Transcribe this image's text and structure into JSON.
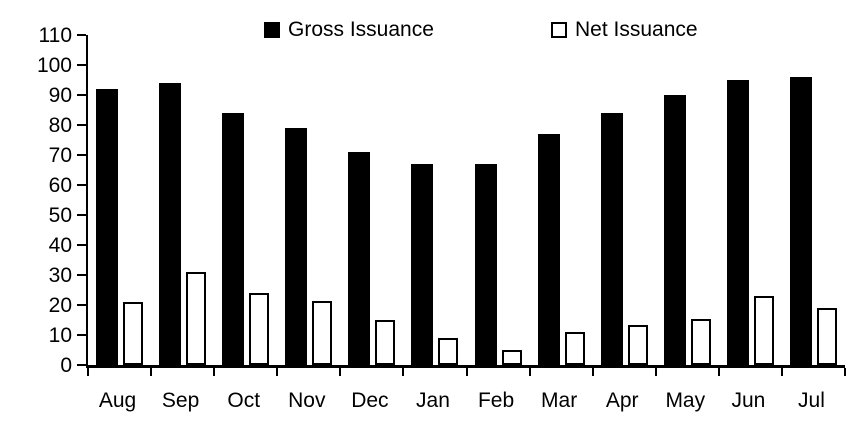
{
  "chart_data": {
    "type": "bar",
    "title": "",
    "xlabel": "",
    "ylabel": "",
    "categories": [
      "Aug",
      "Sep",
      "Oct",
      "Nov",
      "Dec",
      "Jan",
      "Feb",
      "Mar",
      "Apr",
      "May",
      "Jun",
      "Jul"
    ],
    "series": [
      {
        "name": "Gross Issuance",
        "values": [
          92,
          94,
          84,
          79,
          71,
          67,
          67,
          77,
          84,
          90,
          95,
          96
        ]
      },
      {
        "name": "Net Issuance",
        "values": [
          21,
          31,
          24,
          21.5,
          15,
          9,
          5,
          11,
          13.5,
          15.5,
          23,
          19
        ]
      }
    ],
    "ylim": [
      0,
      110
    ],
    "ytick_step": 10,
    "ytick_labels": [
      "0",
      "10",
      "20",
      "30",
      "40",
      "50",
      "60",
      "70",
      "80",
      "90",
      "100",
      "110"
    ],
    "grid": false,
    "legend_position": "top"
  },
  "legend": {
    "gross_label": "Gross Issuance",
    "net_label": "Net Issuance"
  },
  "colors": {
    "gross_fill": "#000000",
    "net_fill": "#ffffff",
    "net_border": "#000000",
    "axis": "#000000",
    "background": "#ffffff",
    "text": "#000000"
  }
}
